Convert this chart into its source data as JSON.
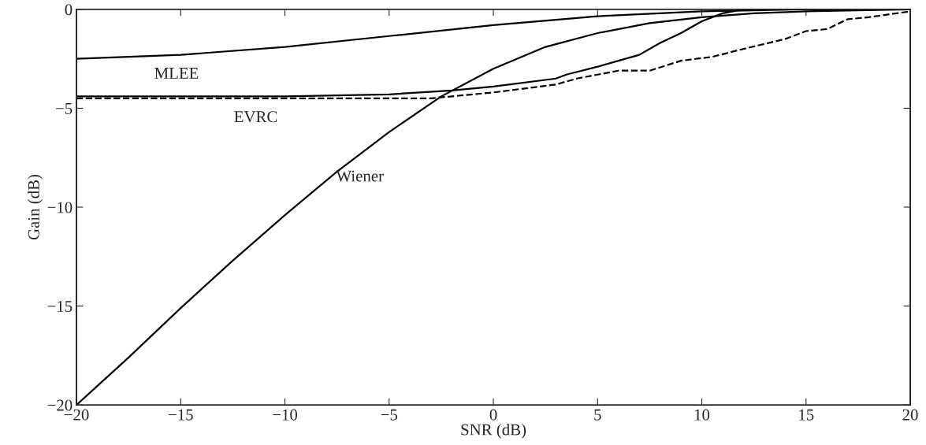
{
  "chart_data": {
    "type": "line",
    "xlabel": "SNR (dB)",
    "ylabel": "Gain (dB)",
    "xlim": [
      -20,
      20
    ],
    "ylim": [
      -20,
      0
    ],
    "xticks": [
      -20,
      -15,
      -10,
      -5,
      0,
      5,
      10,
      15,
      20
    ],
    "yticks": [
      -20,
      -15,
      -10,
      -5,
      0
    ],
    "grid": false,
    "series": [
      {
        "color": "#000000",
        "line_style": "solid",
        "x": [
          -20,
          -15,
          -10,
          -5,
          0,
          5,
          10,
          15,
          20
        ],
        "values": [
          -2.5,
          -2.3,
          -1.9,
          -1.35,
          -0.8,
          -0.35,
          -0.1,
          0,
          0
        ]
      },
      {
        "color": "#000000",
        "line_style": "solid",
        "x": [
          -20,
          -17.5,
          -15,
          -12.5,
          -10,
          -7.5,
          -5,
          -2.5,
          0,
          2.5,
          5,
          7.5,
          10,
          12.5,
          15,
          20
        ],
        "values": [
          -20,
          -17.6,
          -15.1,
          -12.7,
          -10.4,
          -8.2,
          -6.2,
          -4.4,
          -3.0,
          -1.9,
          -1.2,
          -0.7,
          -0.4,
          -0.2,
          -0.1,
          0
        ]
      },
      {
        "color": "#000000",
        "line_style": "solid",
        "x": [
          -20,
          -10,
          -5,
          -2,
          0,
          3,
          3.5,
          5,
          6,
          7,
          8,
          9,
          10,
          11,
          12,
          20
        ],
        "values": [
          -4.4,
          -4.4,
          -4.3,
          -4.1,
          -3.9,
          -3.5,
          -3.3,
          -2.9,
          -2.6,
          -2.3,
          -1.7,
          -1.2,
          -0.6,
          -0.2,
          0,
          0
        ]
      },
      {
        "color": "#000000",
        "line_style": "dashed",
        "x": [
          -20,
          -3,
          0,
          3,
          4,
          6,
          7.5,
          9,
          10.5,
          12,
          14,
          15,
          16,
          17,
          18,
          20
        ],
        "values": [
          -4.5,
          -4.5,
          -4.2,
          -3.8,
          -3.5,
          -3.1,
          -3.1,
          -2.6,
          -2.4,
          -2.0,
          -1.5,
          -1.1,
          -1.0,
          -0.5,
          -0.4,
          -0.1
        ]
      }
    ],
    "annotations": [
      "MLEE",
      "EVRC",
      "Wiener"
    ]
  }
}
